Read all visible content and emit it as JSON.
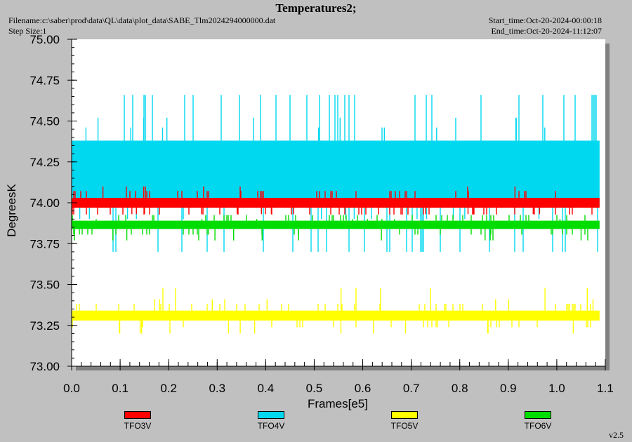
{
  "header": {
    "title": "Temperatures2;",
    "filename": "Filename:c:\\saber\\prod\\data\\QL\\data\\plot_data\\SABE_Tlm2024294000000.dat",
    "step_size": "Step Size:1",
    "start_time": "Start_time:Oct-20-2024-00:00:18",
    "end_time": "End_time:Oct-20-2024-11:12:07"
  },
  "version": "v2.5",
  "chart_data": {
    "type": "line",
    "title": "Temperatures2;",
    "xlabel": "Frames[e5]",
    "ylabel": "DegreesK",
    "xlim": [
      0.0,
      1.1
    ],
    "ylim": [
      73.0,
      75.0
    ],
    "x_ticks": [
      "0.0",
      "0.1",
      "0.2",
      "0.3",
      "0.4",
      "0.5",
      "0.6",
      "0.7",
      "0.8",
      "0.9",
      "1.0",
      "1.1"
    ],
    "y_ticks": [
      "73.00",
      "73.25",
      "73.50",
      "73.75",
      "74.00",
      "74.25",
      "74.50",
      "74.75",
      "75.00"
    ],
    "x_end": 1.088,
    "grid": false,
    "legend_position": "bottom",
    "series": [
      {
        "name": "TFO3V",
        "color": "#ff0000",
        "base": 74.0,
        "low": 73.97,
        "high": 74.03,
        "spikes_up": [
          74.1
        ],
        "spikes_down": [
          73.93
        ]
      },
      {
        "name": "TFO4V",
        "color": "#00d8f0",
        "base": 74.18,
        "low": 73.98,
        "high": 74.38,
        "spikes_up": [
          74.46,
          74.52
        ],
        "spikes_down": [
          73.9
        ]
      },
      {
        "name": "TFO5V",
        "color": "#ffff00",
        "base": 73.31,
        "low": 73.28,
        "high": 73.34,
        "spikes_up": [
          73.41,
          73.48
        ],
        "spikes_down": [
          73.2
        ]
      },
      {
        "name": "TFO6V",
        "color": "#00dd00",
        "base": 73.86,
        "low": 73.84,
        "high": 73.89,
        "spikes_up": [
          73.9
        ],
        "spikes_down": [
          73.77
        ]
      }
    ]
  }
}
